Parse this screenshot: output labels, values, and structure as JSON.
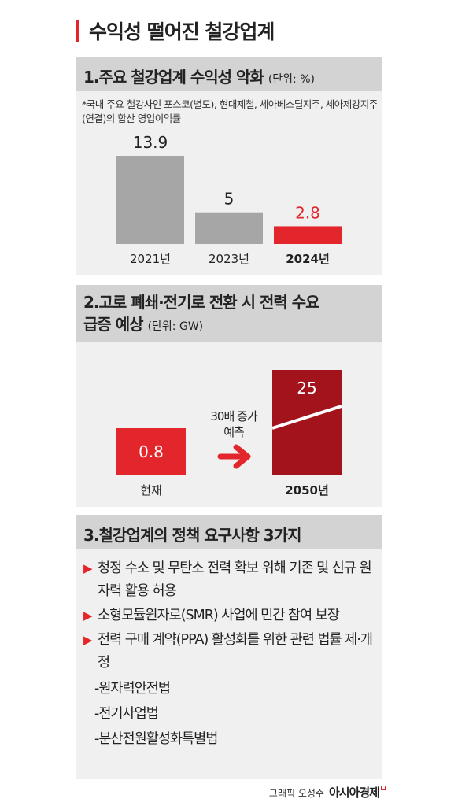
{
  "title": "수익성 떨어진 철강업계",
  "section1": {
    "heading": "1.주요 철강업계 수익성 악화",
    "unit": "(단위: %)",
    "note": "*국내 주요 철강사인 포스코(별도), 현대제철, 세아베스틸지주, 세아제강지주(연결)의 합산 영업이익률"
  },
  "section2": {
    "heading_line1": "2.고로 폐쇄·전기로 전환 시 전력 수요",
    "heading_line2": "급증 예상",
    "unit": "(단위: GW)",
    "annotation_line1": "30배 증가",
    "annotation_line2": "예측"
  },
  "section3": {
    "heading": "3.철강업계의 정책 요구사항 3가지",
    "items": [
      {
        "text": "청정 수소 및 무탄소 전력 확보 위해 기존 및 신규 원자력 활용 허용"
      },
      {
        "text": "소형모듈원자로(SMR) 사업에 민간 참여 보장"
      },
      {
        "text": "전력 구매 계약(PPA) 활성화를 위한 관련 법률 제·개정"
      }
    ],
    "laws": [
      "-원자력안전법",
      "-전기사업법",
      "-분산전원활성화특별법"
    ]
  },
  "credit": {
    "by": "그래픽 오성수",
    "brand": "아시아경제"
  },
  "colors": {
    "accent": "#e3262b",
    "dark_red": "#a3131b",
    "gray_bar": "#a6a6a6",
    "panel_bg": "#f0f0f0",
    "header_bg": "#d3d3d3"
  },
  "chart_data": [
    {
      "type": "bar",
      "categories": [
        "2021년",
        "2023년",
        "2024년"
      ],
      "values": [
        13.9,
        5,
        2.8
      ],
      "highlight": "2024년",
      "ylim": [
        0,
        13.9
      ]
    },
    {
      "type": "bar",
      "categories": [
        "현재",
        "2050년"
      ],
      "values": [
        0.8,
        25
      ],
      "broken_axis": true
    }
  ]
}
